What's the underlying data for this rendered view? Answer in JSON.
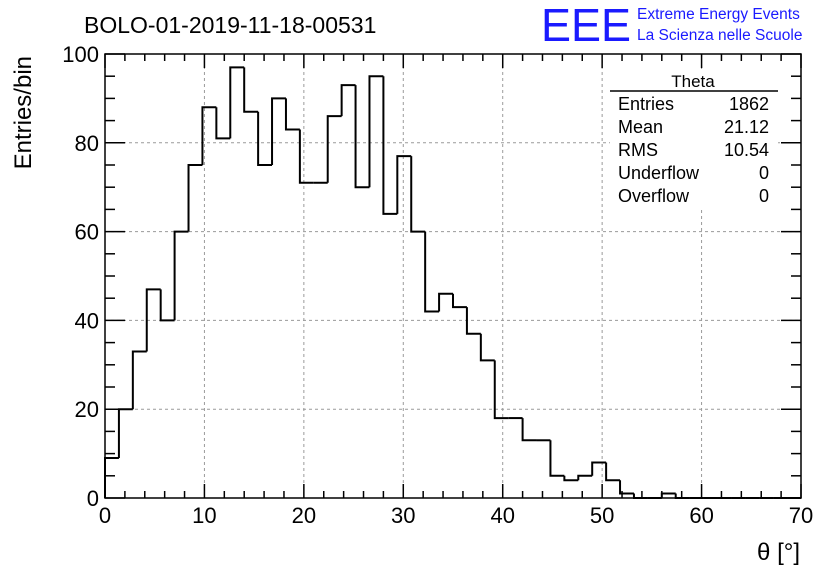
{
  "header": {
    "title": "BOLO-01-2019-11-18-00531",
    "logo_text": "EEE",
    "logo_line1": "Extreme Energy Events",
    "logo_line2": "La Scienza nelle Scuole",
    "logo_color": "#1a1aff"
  },
  "stats": {
    "name": "Theta",
    "rows": [
      {
        "label": "Entries",
        "value": "1862"
      },
      {
        "label": "Mean",
        "value": "21.12"
      },
      {
        "label": "RMS",
        "value": "10.54"
      },
      {
        "label": "Underflow",
        "value": "0"
      },
      {
        "label": "Overflow",
        "value": "0"
      }
    ]
  },
  "chart_data": {
    "type": "histogram",
    "title": "BOLO-01-2019-11-18-00531",
    "xlabel": "θ [°]",
    "ylabel": "Entries/bin",
    "xlim": [
      0,
      70
    ],
    "ylim": [
      0,
      100
    ],
    "bin_width": 1.4,
    "x_ticks": [
      0,
      10,
      20,
      30,
      40,
      50,
      60,
      70
    ],
    "y_ticks": [
      0,
      20,
      40,
      60,
      80,
      100
    ],
    "grid": true,
    "legend": "stats box top-right",
    "line_color": "#000000",
    "values": [
      9,
      20,
      33,
      47,
      40,
      60,
      75,
      88,
      81,
      97,
      87,
      75,
      90,
      83,
      71,
      71,
      86,
      93,
      70,
      95,
      64,
      77,
      60,
      42,
      46,
      43,
      37,
      31,
      18,
      18,
      13,
      13,
      5,
      4,
      5,
      8,
      4,
      1,
      0,
      0,
      1,
      0,
      0,
      0,
      0,
      0,
      0,
      0,
      0,
      0
    ]
  }
}
